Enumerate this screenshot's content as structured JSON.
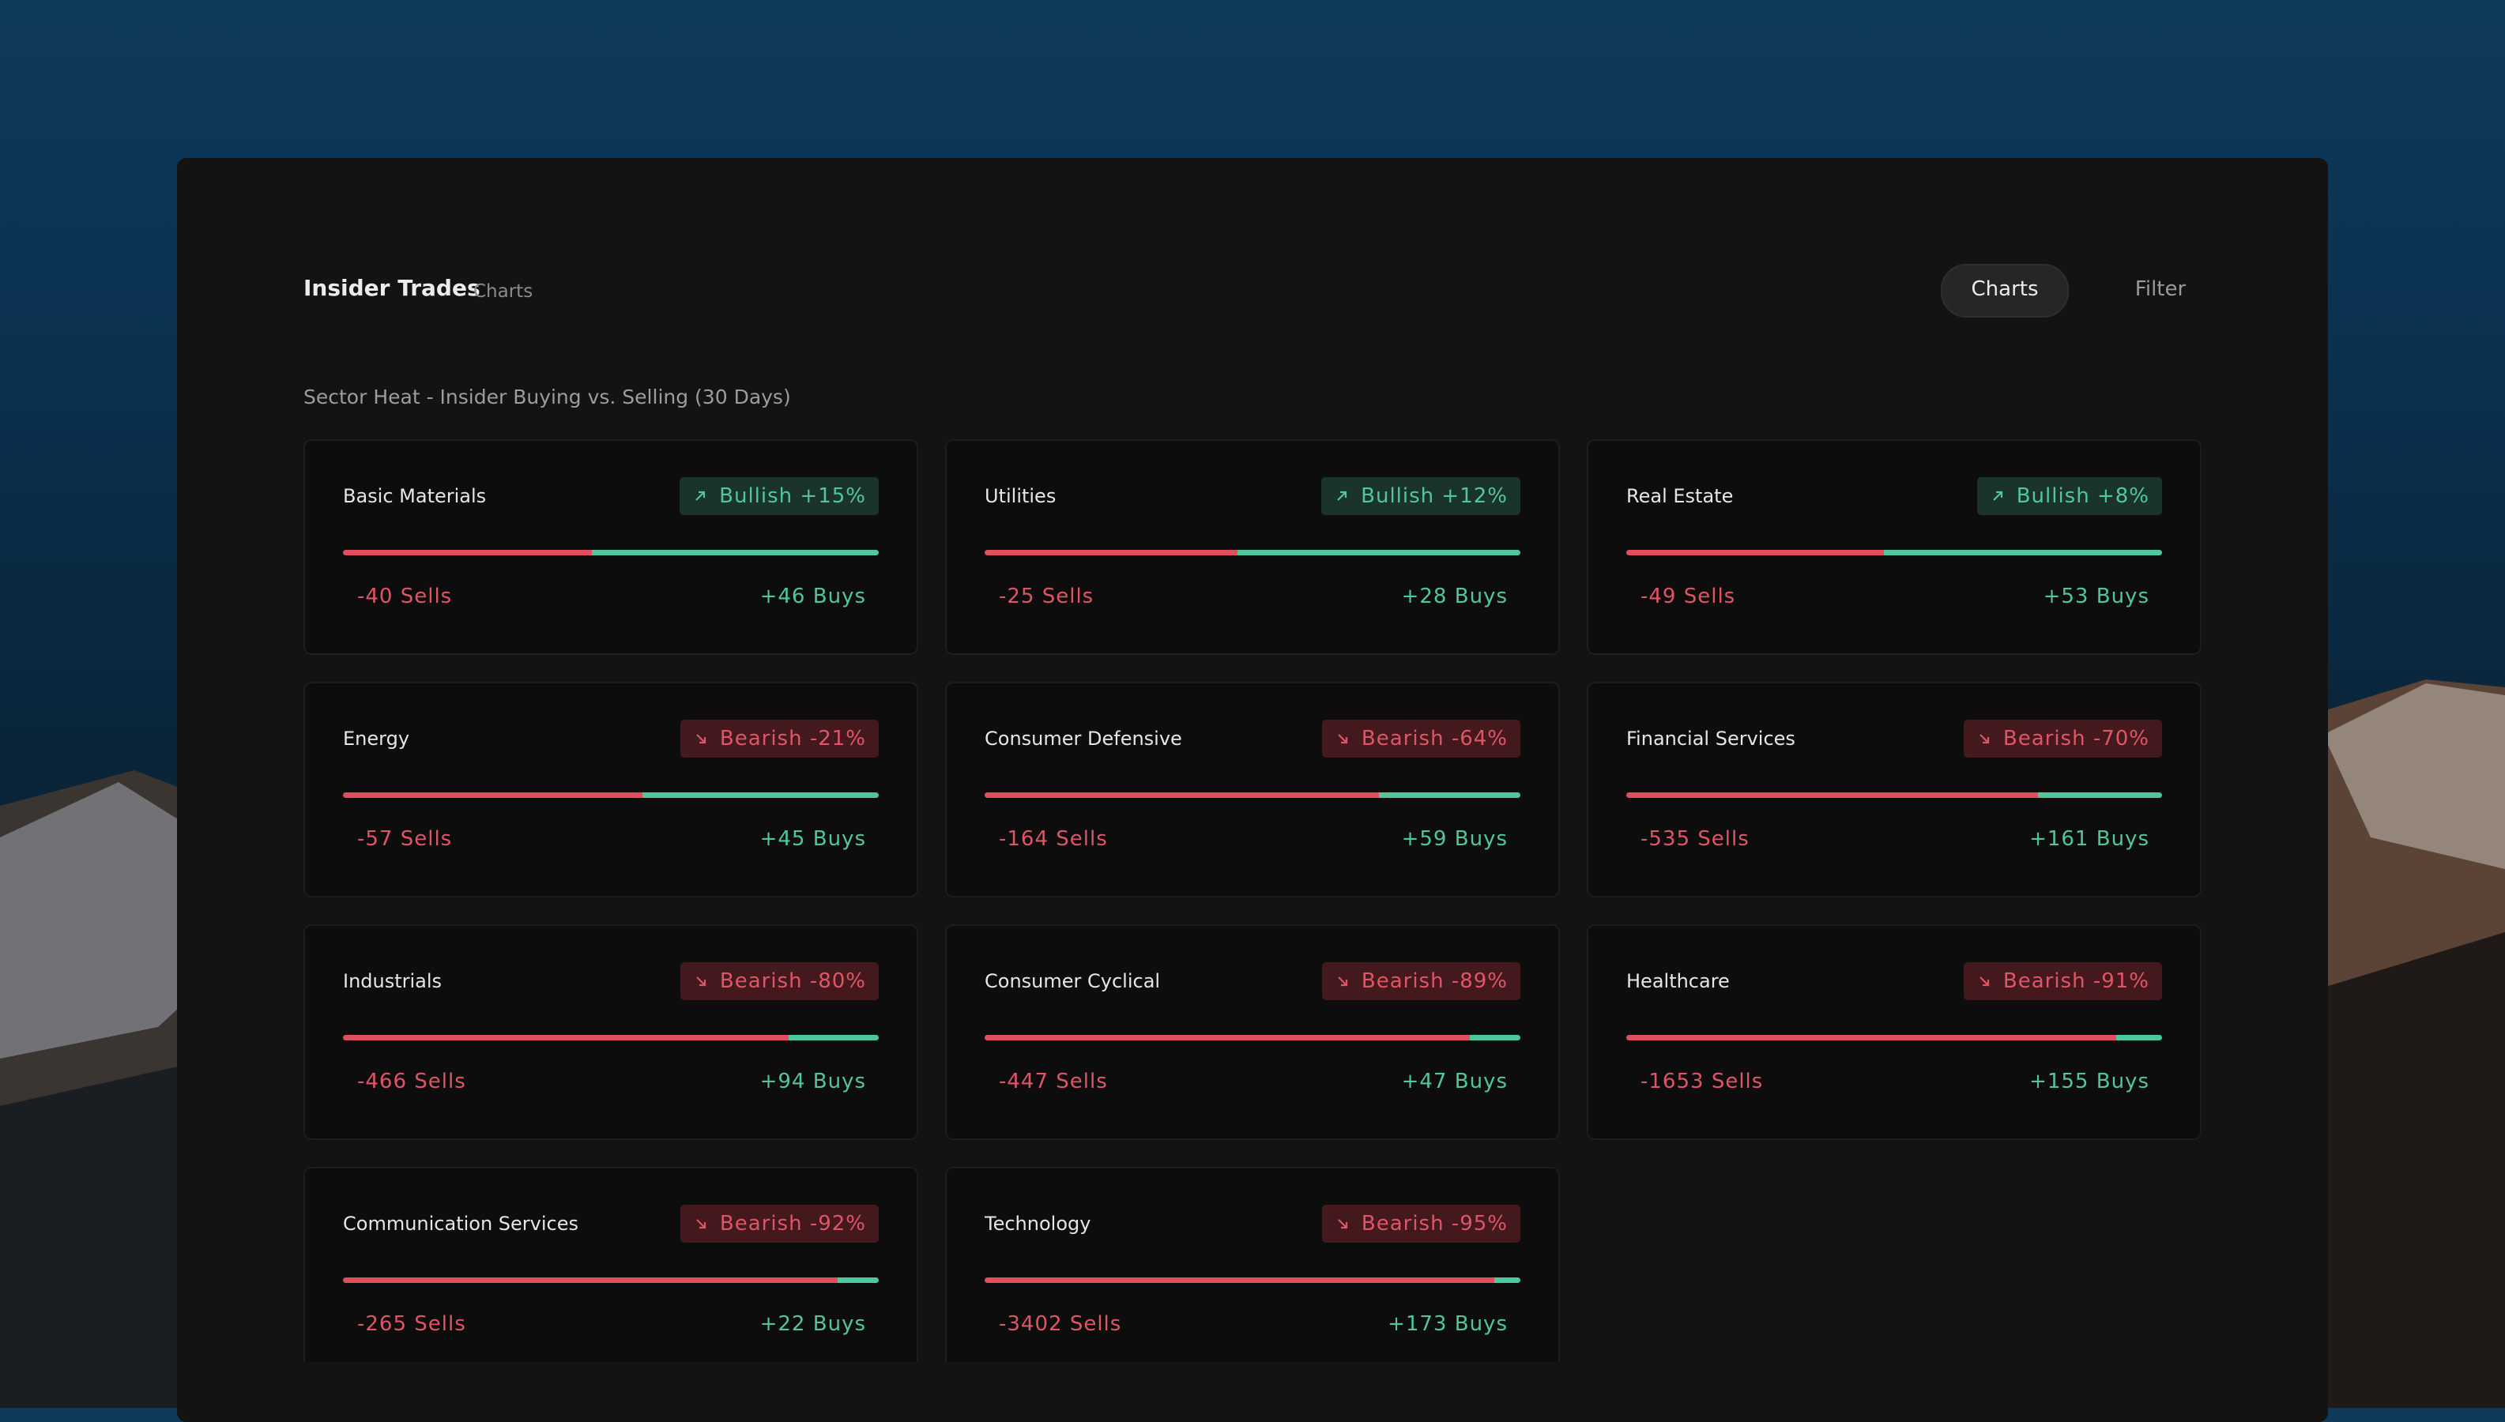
{
  "header": {
    "title": "Insider Trades",
    "subtitle": "Charts",
    "tabs": [
      "Charts",
      "Filter"
    ]
  },
  "section_title": "Sector Heat - Insider Buying vs. Selling (30 Days)",
  "sectors": [
    {
      "name": "Basic Materials",
      "signal": "Bullish +15%",
      "trend": "bullish",
      "sells": {
        "value": 40,
        "label": "-40 Sells"
      },
      "buys": {
        "value": 46,
        "label": "+46 Buys"
      }
    },
    {
      "name": "Utilities",
      "signal": "Bullish +12%",
      "trend": "bullish",
      "sells": {
        "value": 25,
        "label": "-25 Sells"
      },
      "buys": {
        "value": 28,
        "label": "+28 Buys"
      }
    },
    {
      "name": "Real Estate",
      "signal": "Bullish +8%",
      "trend": "bullish",
      "sells": {
        "value": 49,
        "label": "-49 Sells"
      },
      "buys": {
        "value": 53,
        "label": "+53 Buys"
      }
    },
    {
      "name": "Energy",
      "signal": "Bearish -21%",
      "trend": "bearish",
      "sells": {
        "value": 57,
        "label": "-57 Sells"
      },
      "buys": {
        "value": 45,
        "label": "+45 Buys"
      }
    },
    {
      "name": "Consumer Defensive",
      "signal": "Bearish -64%",
      "trend": "bearish",
      "sells": {
        "value": 164,
        "label": "-164 Sells"
      },
      "buys": {
        "value": 59,
        "label": "+59 Buys"
      }
    },
    {
      "name": "Financial Services",
      "signal": "Bearish -70%",
      "trend": "bearish",
      "sells": {
        "value": 535,
        "label": "-535 Sells"
      },
      "buys": {
        "value": 161,
        "label": "+161 Buys"
      }
    },
    {
      "name": "Industrials",
      "signal": "Bearish -80%",
      "trend": "bearish",
      "sells": {
        "value": 466,
        "label": "-466 Sells"
      },
      "buys": {
        "value": 94,
        "label": "+94 Buys"
      }
    },
    {
      "name": "Consumer Cyclical",
      "signal": "Bearish -89%",
      "trend": "bearish",
      "sells": {
        "value": 447,
        "label": "-447 Sells"
      },
      "buys": {
        "value": 47,
        "label": "+47 Buys"
      }
    },
    {
      "name": "Healthcare",
      "signal": "Bearish -91%",
      "trend": "bearish",
      "sells": {
        "value": 1653,
        "label": "-1653 Sells"
      },
      "buys": {
        "value": 155,
        "label": "+155 Buys"
      }
    },
    {
      "name": "Communication Services",
      "signal": "Bearish -92%",
      "trend": "bearish",
      "sells": {
        "value": 265,
        "label": "-265 Sells"
      },
      "buys": {
        "value": 22,
        "label": "+22 Buys"
      }
    },
    {
      "name": "Technology",
      "signal": "Bearish -95%",
      "trend": "bearish",
      "sells": {
        "value": 3402,
        "label": "-3402 Sells"
      },
      "buys": {
        "value": 173,
        "label": "+173 Buys"
      }
    }
  ]
}
